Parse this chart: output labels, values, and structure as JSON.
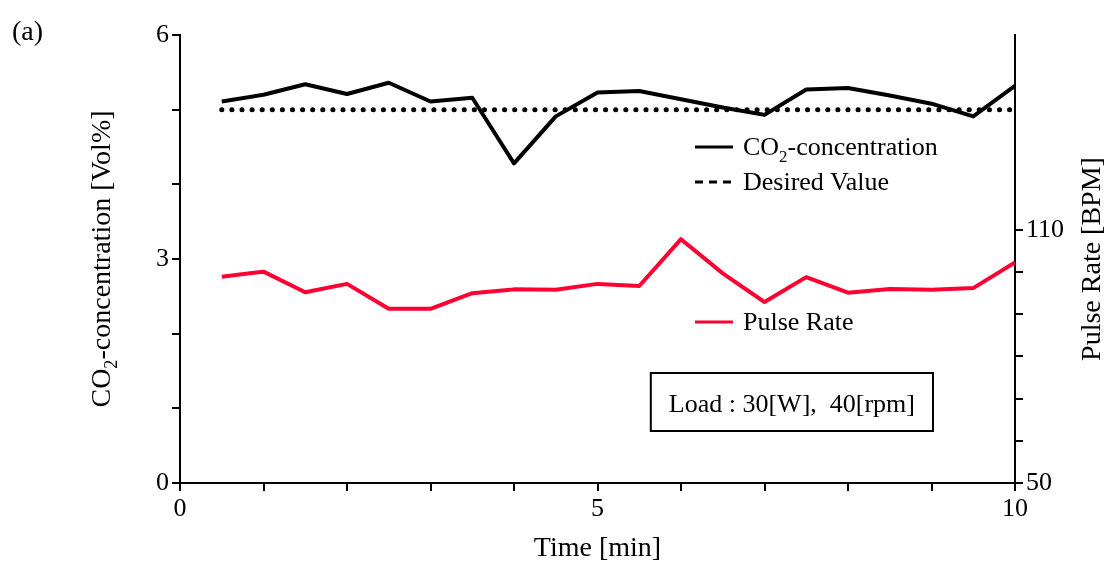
{
  "chart_data": {
    "type": "line",
    "xlabel": "Time [min]",
    "ylabel": "CO$_{2}$-concentration [Vol%]",
    "y2label": "Pulse Rate [BPM]",
    "annotations": [
      "(a)",
      "Load : 30[W],  40[rpm]"
    ],
    "x": [
      0.5,
      1,
      1.5,
      2,
      2.5,
      3,
      3.5,
      4,
      4.5,
      5,
      5.5,
      6,
      6.5,
      7,
      7.5,
      8,
      8.5,
      9,
      9.5,
      10
    ],
    "series": [
      {
        "name": "CO$_{2}$-concentration",
        "color": "#000000",
        "values": [
          5.11,
          5.2,
          5.34,
          5.21,
          5.36,
          5.11,
          5.16,
          4.28,
          4.91,
          5.23,
          5.25,
          5.14,
          5.03,
          4.93,
          5.27,
          5.29,
          5.19,
          5.08,
          4.91,
          5.32
        ]
      },
      {
        "name": "Desired Value",
        "color": "#000000",
        "line_style": "dotted",
        "x": [
          0.5,
          10
        ],
        "values": [
          5,
          5
        ]
      },
      {
        "name": "Pulse Rate",
        "color": "#ff0033",
        "axis": "y2",
        "values": [
          98.9,
          100.1,
          95.2,
          97.2,
          91.3,
          91.3,
          95,
          95.9,
          95.8,
          97.2,
          96.7,
          107.8,
          99.7,
          92.9,
          98.8,
          95.1,
          96,
          95.8,
          96.2,
          102.3
        ]
      }
    ],
    "xlim": [
      0,
      10
    ],
    "xticks": [
      0,
      {
        "value": 1,
        "label": null
      },
      {
        "value": 2,
        "label": null
      },
      {
        "value": 3,
        "label": null
      },
      {
        "value": 4,
        "label": null
      },
      5,
      {
        "value": 6,
        "label": null
      },
      {
        "value": 7,
        "label": null
      },
      {
        "value": 8,
        "label": null
      },
      {
        "value": 9,
        "label": null
      },
      10
    ],
    "ylim": [
      0,
      6
    ],
    "yticks": [
      0,
      {
        "value": 1,
        "label": null
      },
      {
        "value": 2,
        "label": null
      },
      3,
      {
        "value": 4,
        "label": null
      },
      {
        "value": 5,
        "label": null
      },
      6
    ],
    "y2lim": [
      50,
      156.2
    ],
    "y2ticks": [
      50,
      {
        "value": 60,
        "label": null
      },
      {
        "value": 70,
        "label": null
      },
      {
        "value": 80,
        "label": null
      },
      {
        "value": 90,
        "label": null
      },
      {
        "value": 100,
        "label": null
      },
      110
    ],
    "grid": false,
    "legend": "right",
    "marker": "none",
    "line_style": "solid"
  }
}
